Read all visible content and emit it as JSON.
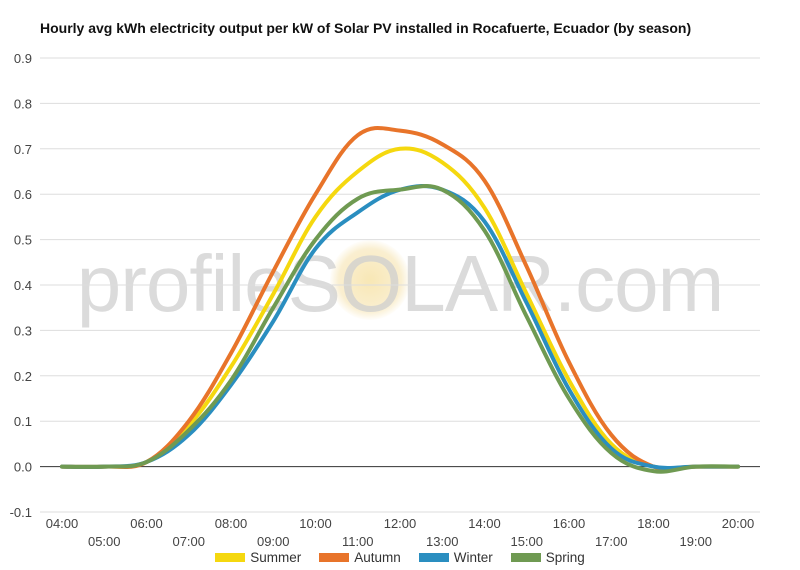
{
  "title": "Hourly avg kWh electricity output per kW of Solar PV installed in Rocafuerte, Ecuador (by season)",
  "watermark": "profileSOLAR.com",
  "chart_data": {
    "type": "line",
    "title": "Hourly avg kWh electricity output per kW of Solar PV installed in Rocafuerte, Ecuador (by season)",
    "xlabel": "",
    "ylabel": "",
    "x": [
      "04:00",
      "05:00",
      "06:00",
      "07:00",
      "08:00",
      "09:00",
      "10:00",
      "11:00",
      "12:00",
      "13:00",
      "14:00",
      "15:00",
      "16:00",
      "17:00",
      "18:00",
      "19:00",
      "20:00"
    ],
    "ylim": [
      -0.1,
      0.9
    ],
    "yticks": [
      "-0.1",
      "0.0",
      "0.1",
      "0.2",
      "0.3",
      "0.4",
      "0.5",
      "0.6",
      "0.7",
      "0.8",
      "0.9"
    ],
    "grid": true,
    "legend_position": "bottom",
    "series": [
      {
        "name": "Summer",
        "color": "#f5d80f",
        "values": [
          0.0,
          0.0,
          0.01,
          0.09,
          0.22,
          0.38,
          0.55,
          0.65,
          0.7,
          0.67,
          0.57,
          0.38,
          0.19,
          0.05,
          0.0,
          0.0,
          0.0
        ]
      },
      {
        "name": "Autumn",
        "color": "#e8742a",
        "values": [
          0.0,
          0.0,
          0.01,
          0.1,
          0.25,
          0.43,
          0.6,
          0.73,
          0.74,
          0.71,
          0.63,
          0.44,
          0.23,
          0.07,
          0.0,
          0.0,
          0.0
        ]
      },
      {
        "name": "Winter",
        "color": "#2a8ec0",
        "values": [
          0.0,
          0.0,
          0.01,
          0.07,
          0.18,
          0.32,
          0.48,
          0.56,
          0.61,
          0.61,
          0.54,
          0.36,
          0.17,
          0.04,
          0.0,
          0.0,
          0.0
        ]
      },
      {
        "name": "Spring",
        "color": "#6f9a52",
        "values": [
          0.0,
          0.0,
          0.01,
          0.08,
          0.19,
          0.35,
          0.5,
          0.59,
          0.61,
          0.61,
          0.52,
          0.33,
          0.15,
          0.03,
          -0.01,
          0.0,
          0.0
        ]
      }
    ]
  }
}
